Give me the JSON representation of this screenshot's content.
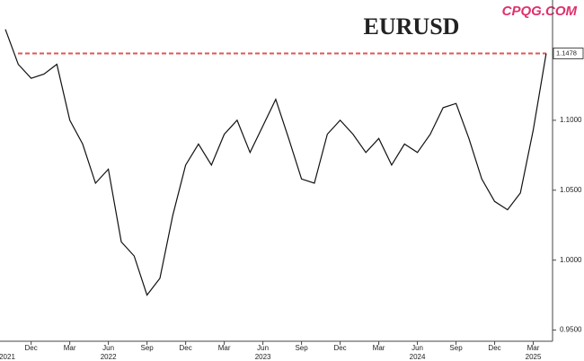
{
  "chart_data": {
    "type": "line",
    "title": "EURUSD",
    "watermark": "CPQG.COM",
    "x": [
      "2021-10",
      "2021-11",
      "2021-12",
      "2022-01",
      "2022-02",
      "2022-03",
      "2022-04",
      "2022-05",
      "2022-06",
      "2022-07",
      "2022-08",
      "2022-09",
      "2022-10",
      "2022-11",
      "2022-12",
      "2023-01",
      "2023-02",
      "2023-03",
      "2023-04",
      "2023-05",
      "2023-06",
      "2023-07",
      "2023-08",
      "2023-09",
      "2023-10",
      "2023-11",
      "2023-12",
      "2024-01",
      "2024-02",
      "2024-03",
      "2024-04",
      "2024-05",
      "2024-06",
      "2024-07",
      "2024-08",
      "2024-09",
      "2024-10",
      "2024-11",
      "2024-12",
      "2025-01",
      "2025-02",
      "2025-03",
      "2025-04"
    ],
    "series": [
      {
        "name": "EURUSD",
        "color": "#111111",
        "values": [
          1.165,
          1.14,
          1.13,
          1.133,
          1.14,
          1.1,
          1.083,
          1.055,
          1.065,
          1.013,
          1.003,
          0.975,
          0.987,
          1.032,
          1.068,
          1.083,
          1.068,
          1.09,
          1.1,
          1.077,
          1.096,
          1.115,
          1.087,
          1.058,
          1.055,
          1.09,
          1.1,
          1.09,
          1.077,
          1.087,
          1.068,
          1.083,
          1.077,
          1.09,
          1.109,
          1.112,
          1.087,
          1.058,
          1.042,
          1.036,
          1.048,
          1.093,
          1.1478
        ]
      }
    ],
    "last_value": {
      "value": 1.1478,
      "label": "1.1478"
    },
    "reference_color": "#e05555",
    "ylim": [
      0.942,
      1.186
    ],
    "yticks": [
      {
        "value": 0.95,
        "label": "0.9500"
      },
      {
        "value": 1.0,
        "label": "1.0000"
      },
      {
        "value": 1.05,
        "label": "1.0500"
      },
      {
        "value": 1.1,
        "label": "1.1000"
      }
    ],
    "xticks": [
      {
        "value": "2021-12",
        "label": "Dec"
      },
      {
        "value": "2022-03",
        "label": "Mar"
      },
      {
        "value": "2022-06",
        "label": "Jun"
      },
      {
        "value": "2022-09",
        "label": "Sep"
      },
      {
        "value": "2022-12",
        "label": "Dec"
      },
      {
        "value": "2023-03",
        "label": "Mar"
      },
      {
        "value": "2023-06",
        "label": "Jun"
      },
      {
        "value": "2023-09",
        "label": "Sep"
      },
      {
        "value": "2023-12",
        "label": "Dec"
      },
      {
        "value": "2024-03",
        "label": "Mar"
      },
      {
        "value": "2024-06",
        "label": "Jun"
      },
      {
        "value": "2024-09",
        "label": "Sep"
      },
      {
        "value": "2024-12",
        "label": "Dec"
      },
      {
        "value": "2025-03",
        "label": "Mar"
      }
    ],
    "year_labels": [
      {
        "value": "2021-10",
        "label": "2021"
      },
      {
        "value": "2022-06",
        "label": "2022"
      },
      {
        "value": "2023-06",
        "label": "2023"
      },
      {
        "value": "2024-06",
        "label": "2024"
      },
      {
        "value": "2025-03",
        "label": "2025"
      }
    ]
  }
}
